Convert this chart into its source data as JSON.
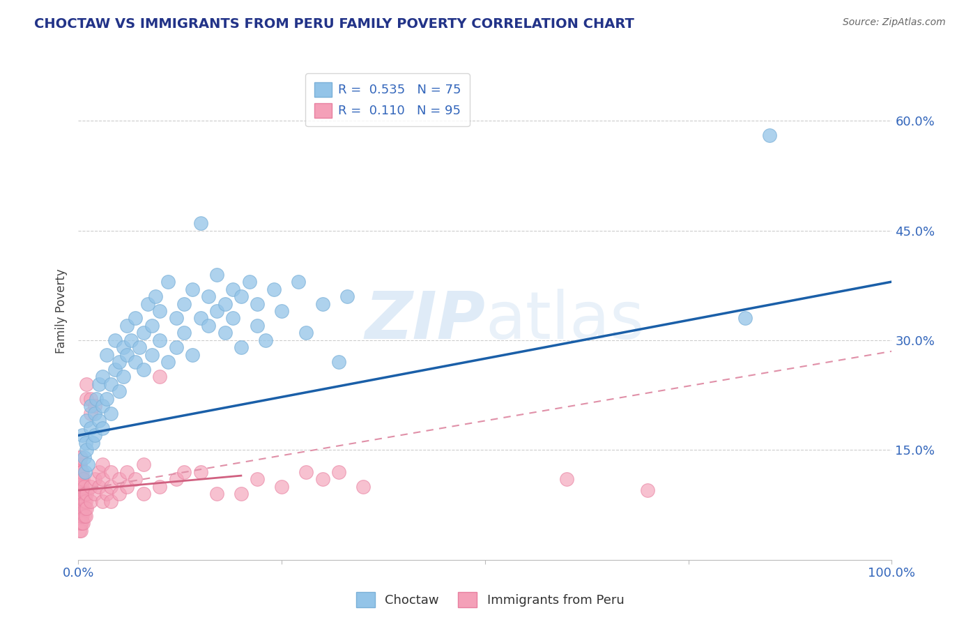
{
  "title": "CHOCTAW VS IMMIGRANTS FROM PERU FAMILY POVERTY CORRELATION CHART",
  "source": "Source: ZipAtlas.com",
  "ylabel": "Family Poverty",
  "xlim": [
    0.0,
    1.0
  ],
  "ylim": [
    0.0,
    0.68
  ],
  "ytick_positions": [
    0.15,
    0.3,
    0.45,
    0.6
  ],
  "ytick_labels": [
    "15.0%",
    "30.0%",
    "45.0%",
    "60.0%"
  ],
  "choctaw_color": "#93c4e8",
  "choctaw_edge": "#7ab0d8",
  "peru_color": "#f4a0b8",
  "peru_edge": "#e880a0",
  "choctaw_line_color": "#1a5fa8",
  "peru_line_color": "#d06080",
  "peru_dash_color": "#e090a8",
  "watermark_color": "#c0d8f0",
  "background_color": "#ffffff",
  "grid_color": "#cccccc",
  "choctaw_scatter": [
    [
      0.005,
      0.17
    ],
    [
      0.007,
      0.14
    ],
    [
      0.008,
      0.12
    ],
    [
      0.009,
      0.16
    ],
    [
      0.01,
      0.19
    ],
    [
      0.01,
      0.15
    ],
    [
      0.012,
      0.13
    ],
    [
      0.015,
      0.18
    ],
    [
      0.015,
      0.21
    ],
    [
      0.018,
      0.16
    ],
    [
      0.02,
      0.2
    ],
    [
      0.02,
      0.17
    ],
    [
      0.022,
      0.22
    ],
    [
      0.025,
      0.19
    ],
    [
      0.025,
      0.24
    ],
    [
      0.03,
      0.21
    ],
    [
      0.03,
      0.18
    ],
    [
      0.03,
      0.25
    ],
    [
      0.035,
      0.22
    ],
    [
      0.035,
      0.28
    ],
    [
      0.04,
      0.24
    ],
    [
      0.04,
      0.2
    ],
    [
      0.045,
      0.26
    ],
    [
      0.045,
      0.3
    ],
    [
      0.05,
      0.27
    ],
    [
      0.05,
      0.23
    ],
    [
      0.055,
      0.29
    ],
    [
      0.055,
      0.25
    ],
    [
      0.06,
      0.28
    ],
    [
      0.06,
      0.32
    ],
    [
      0.065,
      0.3
    ],
    [
      0.07,
      0.27
    ],
    [
      0.07,
      0.33
    ],
    [
      0.075,
      0.29
    ],
    [
      0.08,
      0.31
    ],
    [
      0.08,
      0.26
    ],
    [
      0.085,
      0.35
    ],
    [
      0.09,
      0.32
    ],
    [
      0.09,
      0.28
    ],
    [
      0.095,
      0.36
    ],
    [
      0.1,
      0.3
    ],
    [
      0.1,
      0.34
    ],
    [
      0.11,
      0.27
    ],
    [
      0.11,
      0.38
    ],
    [
      0.12,
      0.33
    ],
    [
      0.12,
      0.29
    ],
    [
      0.13,
      0.35
    ],
    [
      0.13,
      0.31
    ],
    [
      0.14,
      0.37
    ],
    [
      0.14,
      0.28
    ],
    [
      0.15,
      0.33
    ],
    [
      0.15,
      0.46
    ],
    [
      0.16,
      0.32
    ],
    [
      0.16,
      0.36
    ],
    [
      0.17,
      0.34
    ],
    [
      0.17,
      0.39
    ],
    [
      0.18,
      0.35
    ],
    [
      0.18,
      0.31
    ],
    [
      0.19,
      0.37
    ],
    [
      0.19,
      0.33
    ],
    [
      0.2,
      0.29
    ],
    [
      0.2,
      0.36
    ],
    [
      0.21,
      0.38
    ],
    [
      0.22,
      0.32
    ],
    [
      0.22,
      0.35
    ],
    [
      0.23,
      0.3
    ],
    [
      0.24,
      0.37
    ],
    [
      0.25,
      0.34
    ],
    [
      0.27,
      0.38
    ],
    [
      0.28,
      0.31
    ],
    [
      0.3,
      0.35
    ],
    [
      0.32,
      0.27
    ],
    [
      0.33,
      0.36
    ],
    [
      0.85,
      0.58
    ],
    [
      0.82,
      0.33
    ]
  ],
  "peru_scatter": [
    [
      0.001,
      0.05
    ],
    [
      0.001,
      0.06
    ],
    [
      0.001,
      0.07
    ],
    [
      0.001,
      0.08
    ],
    [
      0.001,
      0.09
    ],
    [
      0.001,
      0.1
    ],
    [
      0.001,
      0.11
    ],
    [
      0.001,
      0.12
    ],
    [
      0.001,
      0.13
    ],
    [
      0.001,
      0.04
    ],
    [
      0.002,
      0.05
    ],
    [
      0.002,
      0.06
    ],
    [
      0.002,
      0.07
    ],
    [
      0.002,
      0.08
    ],
    [
      0.002,
      0.09
    ],
    [
      0.002,
      0.1
    ],
    [
      0.002,
      0.11
    ],
    [
      0.002,
      0.12
    ],
    [
      0.002,
      0.13
    ],
    [
      0.002,
      0.14
    ],
    [
      0.003,
      0.05
    ],
    [
      0.003,
      0.06
    ],
    [
      0.003,
      0.07
    ],
    [
      0.003,
      0.08
    ],
    [
      0.003,
      0.09
    ],
    [
      0.003,
      0.1
    ],
    [
      0.003,
      0.11
    ],
    [
      0.003,
      0.12
    ],
    [
      0.003,
      0.14
    ],
    [
      0.003,
      0.04
    ],
    [
      0.004,
      0.05
    ],
    [
      0.004,
      0.06
    ],
    [
      0.004,
      0.07
    ],
    [
      0.004,
      0.08
    ],
    [
      0.004,
      0.09
    ],
    [
      0.004,
      0.1
    ],
    [
      0.004,
      0.11
    ],
    [
      0.004,
      0.12
    ],
    [
      0.005,
      0.06
    ],
    [
      0.005,
      0.08
    ],
    [
      0.005,
      0.1
    ],
    [
      0.005,
      0.12
    ],
    [
      0.006,
      0.05
    ],
    [
      0.006,
      0.07
    ],
    [
      0.006,
      0.09
    ],
    [
      0.006,
      0.11
    ],
    [
      0.007,
      0.06
    ],
    [
      0.007,
      0.08
    ],
    [
      0.007,
      0.1
    ],
    [
      0.008,
      0.07
    ],
    [
      0.008,
      0.09
    ],
    [
      0.009,
      0.06
    ],
    [
      0.009,
      0.08
    ],
    [
      0.01,
      0.07
    ],
    [
      0.01,
      0.09
    ],
    [
      0.01,
      0.22
    ],
    [
      0.01,
      0.24
    ],
    [
      0.015,
      0.2
    ],
    [
      0.015,
      0.22
    ],
    [
      0.015,
      0.08
    ],
    [
      0.015,
      0.1
    ],
    [
      0.02,
      0.09
    ],
    [
      0.02,
      0.11
    ],
    [
      0.02,
      0.21
    ],
    [
      0.025,
      0.1
    ],
    [
      0.025,
      0.12
    ],
    [
      0.03,
      0.08
    ],
    [
      0.03,
      0.11
    ],
    [
      0.03,
      0.13
    ],
    [
      0.035,
      0.09
    ],
    [
      0.04,
      0.1
    ],
    [
      0.04,
      0.12
    ],
    [
      0.04,
      0.08
    ],
    [
      0.05,
      0.09
    ],
    [
      0.05,
      0.11
    ],
    [
      0.06,
      0.1
    ],
    [
      0.06,
      0.12
    ],
    [
      0.07,
      0.11
    ],
    [
      0.08,
      0.09
    ],
    [
      0.08,
      0.13
    ],
    [
      0.1,
      0.1
    ],
    [
      0.1,
      0.25
    ],
    [
      0.12,
      0.11
    ],
    [
      0.13,
      0.12
    ],
    [
      0.15,
      0.12
    ],
    [
      0.17,
      0.09
    ],
    [
      0.2,
      0.09
    ],
    [
      0.22,
      0.11
    ],
    [
      0.25,
      0.1
    ],
    [
      0.28,
      0.12
    ],
    [
      0.3,
      0.11
    ],
    [
      0.32,
      0.12
    ],
    [
      0.35,
      0.1
    ],
    [
      0.6,
      0.11
    ],
    [
      0.7,
      0.095
    ]
  ],
  "choctaw_line": [
    [
      0.0,
      0.17
    ],
    [
      1.0,
      0.38
    ]
  ],
  "peru_solid_line": [
    [
      0.0,
      0.095
    ],
    [
      0.2,
      0.115
    ]
  ],
  "peru_dash_line": [
    [
      0.0,
      0.095
    ],
    [
      1.0,
      0.285
    ]
  ]
}
